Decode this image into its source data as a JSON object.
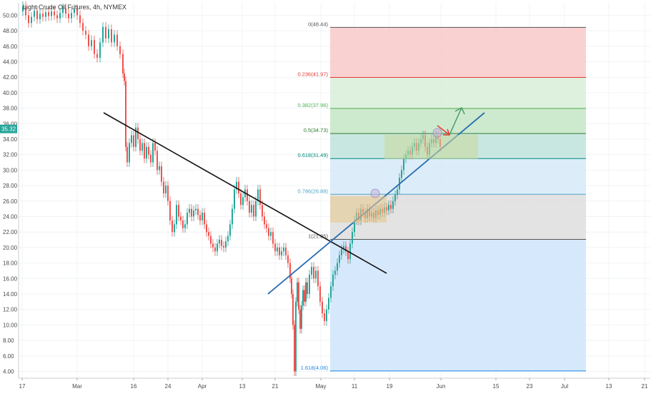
{
  "chart_data": {
    "type": "candlestick",
    "title": "Light Crude Oil Futures, 4h, NYMEX",
    "current_price": "35.32",
    "ylim": [
      3,
      51
    ],
    "y_ticks": [
      "4.00",
      "6.00",
      "8.00",
      "10.00",
      "12.00",
      "14.00",
      "16.00",
      "18.00",
      "20.00",
      "22.00",
      "24.00",
      "26.00",
      "28.00",
      "30.00",
      "32.00",
      "34.00",
      "36.00",
      "38.00",
      "40.00",
      "42.00",
      "44.00",
      "46.00",
      "48.00",
      "50.00"
    ],
    "x_ticks": [
      "17",
      "Mar",
      "16",
      "24",
      "Apr",
      "13",
      "21",
      "May",
      "11",
      "19",
      "Jun",
      "15",
      "23",
      "Jul",
      "13",
      "21"
    ],
    "fib_levels": [
      {
        "label": "0(48.44)",
        "price": 48.44,
        "color": "#555555"
      },
      {
        "label": "0.236(41.97)",
        "price": 41.97,
        "color": "#e53935"
      },
      {
        "label": "0.382(37.96)",
        "price": 37.96,
        "color": "#4caf50"
      },
      {
        "label": "0.5(34.73)",
        "price": 34.73,
        "color": "#2e7d32"
      },
      {
        "label": "0.618(31.49)",
        "price": 31.49,
        "color": "#00897b"
      },
      {
        "label": "0.786(26.88)",
        "price": 26.88,
        "color": "#4da6c8"
      },
      {
        "label": "1(21.05)",
        "price": 21.05,
        "color": "#555555"
      },
      {
        "label": "1.618(4.06)",
        "price": 4.06,
        "color": "#1e88e5"
      }
    ],
    "fib_zone_colors": [
      "#f9c9c9",
      "#d8efd8",
      "#c6e6c6",
      "#bfe3dc",
      "#d6eaf8",
      "#dedede",
      "#cfe5fb"
    ],
    "price_series": [
      [
        0,
        50.5
      ],
      [
        4,
        51.2
      ],
      [
        8,
        50.0
      ],
      [
        12,
        49.0
      ],
      [
        16,
        49.8
      ],
      [
        20,
        50.6
      ],
      [
        24,
        49.5
      ],
      [
        28,
        50.2
      ],
      [
        32,
        49.8
      ],
      [
        36,
        50.4
      ],
      [
        40,
        49.9
      ],
      [
        44,
        50.5
      ],
      [
        48,
        50.0
      ],
      [
        52,
        49.6
      ],
      [
        56,
        50.3
      ],
      [
        60,
        50.9
      ],
      [
        64,
        50.2
      ],
      [
        68,
        49.6
      ],
      [
        72,
        50.3
      ],
      [
        76,
        50.8
      ],
      [
        80,
        50.0
      ],
      [
        84,
        49.0
      ],
      [
        88,
        48.0
      ],
      [
        92,
        47.5
      ],
      [
        96,
        46.0
      ],
      [
        100,
        46.8
      ],
      [
        104,
        45.0
      ],
      [
        108,
        44.5
      ],
      [
        112,
        46.5
      ],
      [
        116,
        48.5
      ],
      [
        120,
        47.0
      ],
      [
        124,
        48.2
      ],
      [
        128,
        46.5
      ],
      [
        132,
        47.5
      ],
      [
        136,
        46.0
      ],
      [
        140,
        45.0
      ],
      [
        144,
        42.5
      ],
      [
        146,
        41.5
      ],
      [
        148,
        33.0
      ],
      [
        150,
        31.0
      ],
      [
        153,
        33.5
      ],
      [
        156,
        34.5
      ],
      [
        159,
        33.0
      ],
      [
        162,
        35.5
      ],
      [
        165,
        34.0
      ],
      [
        168,
        32.5
      ],
      [
        171,
        33.5
      ],
      [
        174,
        31.5
      ],
      [
        177,
        33.0
      ],
      [
        180,
        32.0
      ],
      [
        183,
        31.0
      ],
      [
        186,
        33.5
      ],
      [
        189,
        32.5
      ],
      [
        192,
        30.0
      ],
      [
        195,
        30.5
      ],
      [
        198,
        28.5
      ],
      [
        201,
        27.0
      ],
      [
        204,
        28.0
      ],
      [
        207,
        26.0
      ],
      [
        210,
        23.5
      ],
      [
        213,
        22.0
      ],
      [
        216,
        23.0
      ],
      [
        219,
        25.5
      ],
      [
        222,
        24.0
      ],
      [
        225,
        23.5
      ],
      [
        228,
        22.5
      ],
      [
        231,
        23.0
      ],
      [
        234,
        24.5
      ],
      [
        237,
        25.0
      ],
      [
        240,
        24.0
      ],
      [
        243,
        24.8
      ],
      [
        246,
        25.0
      ],
      [
        249,
        24.2
      ],
      [
        252,
        23.5
      ],
      [
        255,
        24.5
      ],
      [
        258,
        23.0
      ],
      [
        261,
        22.0
      ],
      [
        264,
        21.5
      ],
      [
        267,
        20.5
      ],
      [
        270,
        20.0
      ],
      [
        273,
        19.5
      ],
      [
        276,
        20.5
      ],
      [
        279,
        21.0
      ],
      [
        282,
        20.2
      ],
      [
        285,
        20.0
      ],
      [
        288,
        20.8
      ],
      [
        291,
        21.5
      ],
      [
        294,
        23.0
      ],
      [
        297,
        25.0
      ],
      [
        300,
        27.5
      ],
      [
        303,
        28.5
      ],
      [
        306,
        27.0
      ],
      [
        309,
        25.5
      ],
      [
        312,
        26.5
      ],
      [
        315,
        27.5
      ],
      [
        318,
        26.0
      ],
      [
        321,
        24.5
      ],
      [
        324,
        25.5
      ],
      [
        327,
        24.0
      ],
      [
        330,
        26.0
      ],
      [
        333,
        27.5
      ],
      [
        336,
        25.5
      ],
      [
        339,
        24.0
      ],
      [
        342,
        23.0
      ],
      [
        345,
        22.5
      ],
      [
        348,
        21.5
      ],
      [
        351,
        22.0
      ],
      [
        354,
        20.5
      ],
      [
        357,
        19.5
      ],
      [
        360,
        20.0
      ],
      [
        363,
        19.0
      ],
      [
        366,
        19.5
      ],
      [
        369,
        20.0
      ],
      [
        372,
        19.0
      ],
      [
        375,
        18.0
      ],
      [
        378,
        16.0
      ],
      [
        380,
        14.0
      ],
      [
        382,
        10.0
      ],
      [
        384,
        4.0
      ],
      [
        386,
        13.0
      ],
      [
        388,
        15.5
      ],
      [
        390,
        12.0
      ],
      [
        392,
        9.5
      ],
      [
        394,
        12.5
      ],
      [
        396,
        14.5
      ],
      [
        398,
        13.0
      ],
      [
        400,
        15.5
      ],
      [
        402,
        14.0
      ],
      [
        405,
        16.5
      ],
      [
        408,
        17.5
      ],
      [
        411,
        16.0
      ],
      [
        414,
        17.0
      ],
      [
        417,
        15.0
      ],
      [
        420,
        13.0
      ],
      [
        423,
        11.5
      ],
      [
        426,
        10.5
      ],
      [
        429,
        12.0
      ],
      [
        432,
        13.5
      ],
      [
        435,
        15.0
      ],
      [
        438,
        16.5
      ],
      [
        441,
        17.0
      ],
      [
        444,
        18.0
      ],
      [
        447,
        19.0
      ],
      [
        450,
        19.8
      ],
      [
        453,
        20.2
      ],
      [
        456,
        19.5
      ],
      [
        459,
        18.5
      ],
      [
        462,
        20.5
      ],
      [
        465,
        22.0
      ],
      [
        468,
        23.5
      ],
      [
        471,
        24.5
      ],
      [
        474,
        23.5
      ],
      [
        477,
        25.0
      ],
      [
        480,
        24.5
      ],
      [
        483,
        23.8
      ],
      [
        486,
        25.0
      ],
      [
        489,
        24.0
      ],
      [
        492,
        24.5
      ],
      [
        495,
        23.8
      ],
      [
        498,
        24.8
      ],
      [
        501,
        24.2
      ],
      [
        504,
        25.0
      ],
      [
        507,
        24.5
      ],
      [
        510,
        25.2
      ],
      [
        513,
        24.8
      ],
      [
        516,
        25.5
      ],
      [
        519,
        25.0
      ],
      [
        522,
        26.0
      ],
      [
        525,
        26.8
      ],
      [
        528,
        27.5
      ],
      [
        531,
        29.0
      ],
      [
        534,
        30.0
      ],
      [
        537,
        31.5
      ],
      [
        540,
        32.0
      ],
      [
        543,
        32.5
      ],
      [
        546,
        32.0
      ],
      [
        549,
        33.0
      ],
      [
        552,
        33.5
      ],
      [
        555,
        32.5
      ],
      [
        558,
        33.5
      ],
      [
        561,
        34.0
      ],
      [
        564,
        34.5
      ],
      [
        567,
        33.0
      ],
      [
        570,
        32.0
      ],
      [
        573,
        33.5
      ],
      [
        576,
        34.0
      ],
      [
        579,
        33.5
      ],
      [
        582,
        34.5
      ],
      [
        585,
        34.0
      ],
      [
        588,
        33.0
      ],
      [
        591,
        34.0
      ],
      [
        594,
        33.0
      ],
      [
        597,
        32.0
      ],
      [
        600,
        33.0
      ],
      [
        603,
        32.5
      ],
      [
        606,
        33.5
      ],
      [
        609,
        34.5
      ],
      [
        612,
        35.3
      ]
    ]
  }
}
